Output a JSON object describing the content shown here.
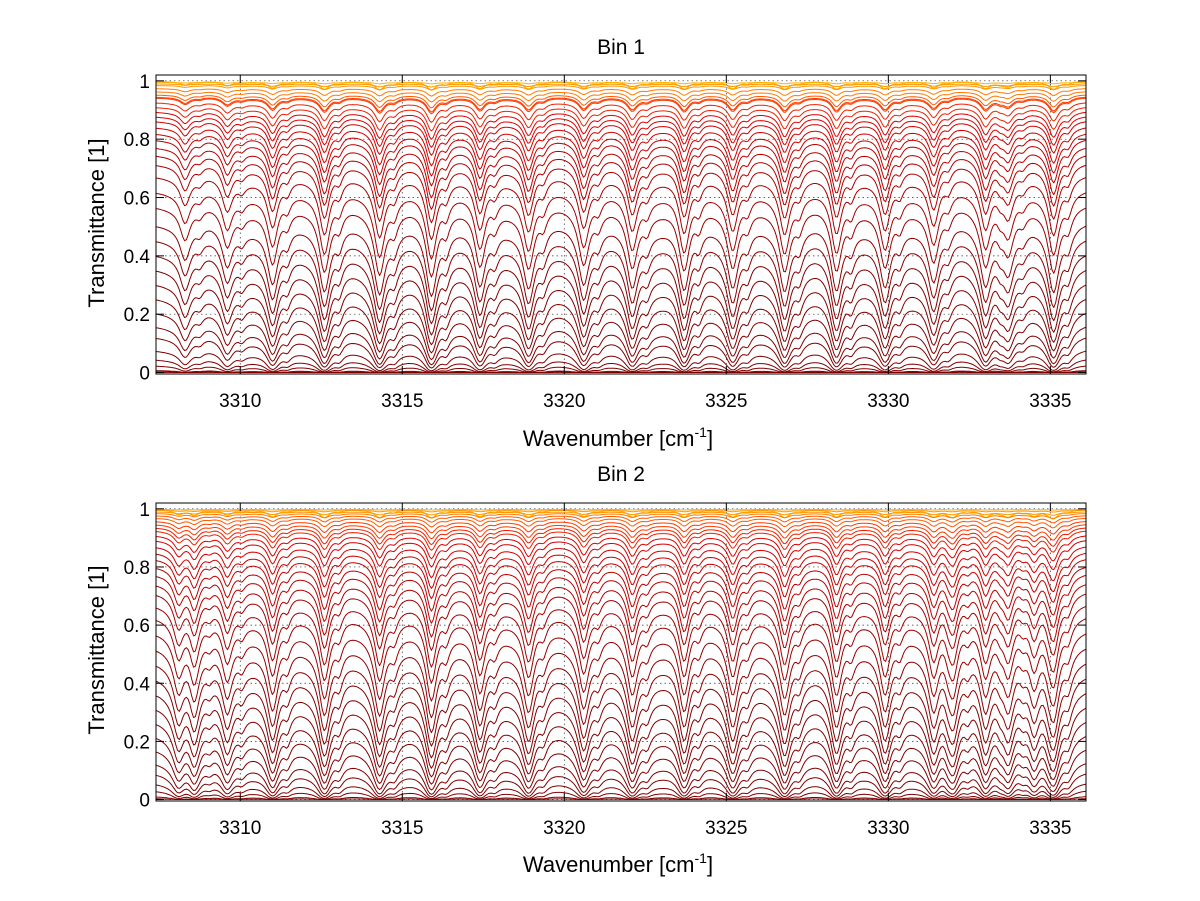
{
  "chart_data": [
    {
      "type": "line",
      "title": "Bin 1",
      "xlabel": "Wavenumber [cm",
      "xlabel_sup": "-1",
      "xlabel_tail": "]",
      "ylabel": "Transmittance [1]",
      "xlim": [
        3307.4,
        3336.1
      ],
      "ylim": [
        -0.005,
        1.02
      ],
      "xticks": [
        3310,
        3315,
        3320,
        3325,
        3330,
        3335
      ],
      "yticks": [
        0,
        0.2,
        0.4,
        0.6,
        0.8,
        1
      ],
      "ytick_labels": [
        "0",
        "0.2",
        "0.4",
        "0.6",
        "0.8",
        "1"
      ],
      "grid": true,
      "legend": "none",
      "lines": {
        "wavenumbers": [
          3308.3,
          3309.6,
          3311.0,
          3312.6,
          3314.3,
          3315.9,
          3317.4,
          3318.9,
          3320.6,
          3322.1,
          3323.7,
          3325.2,
          3326.8,
          3328.4,
          3329.9,
          3331.4,
          3333.0,
          3333.7,
          3335.1
        ],
        "strengths": [
          0.45,
          0.55,
          0.85,
          1.0,
          1.0,
          1.1,
          0.9,
          0.9,
          0.85,
          0.9,
          1.0,
          0.9,
          0.95,
          1.0,
          0.9,
          0.8,
          0.85,
          0.6,
          1.0
        ],
        "width_cm-1": 0.18
      },
      "series_levels": [
        1.0,
        1.0,
        1.0,
        0.995,
        0.99,
        0.985,
        0.975,
        0.965,
        0.955,
        0.948,
        0.945,
        0.93,
        0.915,
        0.9,
        0.885,
        0.87,
        0.85,
        0.83,
        0.81,
        0.785,
        0.76,
        0.73,
        0.69,
        0.64,
        0.59,
        0.53,
        0.48,
        0.43,
        0.38,
        0.33,
        0.28,
        0.23,
        0.18,
        0.14,
        0.09,
        0.055,
        0.03,
        0.01,
        0.004,
        0.001
      ],
      "colors": [
        "#ffcc00",
        "#ffb000",
        "#ff9500",
        "#ff7a00",
        "#ff5a00",
        "#ff3b00",
        "#f02000",
        "#e00000",
        "#d40000",
        "#c80000",
        "#bc0000",
        "#b00000",
        "#a40000",
        "#980000",
        "#8c0000",
        "#800000"
      ]
    },
    {
      "type": "line",
      "title": "Bin 2",
      "xlabel": "Wavenumber [cm",
      "xlabel_sup": "-1",
      "xlabel_tail": "]",
      "ylabel": "Transmittance [1]",
      "xlim": [
        3307.4,
        3336.1
      ],
      "ylim": [
        -0.005,
        1.02
      ],
      "xticks": [
        3310,
        3315,
        3320,
        3325,
        3330,
        3335
      ],
      "yticks": [
        0,
        0.2,
        0.4,
        0.6,
        0.8,
        1
      ],
      "ytick_labels": [
        "0",
        "0.2",
        "0.4",
        "0.6",
        "0.8",
        "1"
      ],
      "grid": true,
      "legend": "none",
      "lines": {
        "wavenumbers": [
          3308.1,
          3308.6,
          3309.6,
          3311.0,
          3312.6,
          3314.3,
          3315.9,
          3317.4,
          3318.9,
          3320.6,
          3322.1,
          3323.7,
          3325.2,
          3326.8,
          3328.4,
          3329.9,
          3331.4,
          3332.0,
          3333.0,
          3333.7,
          3334.5,
          3335.1
        ],
        "strengths": [
          0.6,
          0.6,
          0.7,
          0.95,
          1.05,
          1.0,
          1.1,
          0.95,
          0.95,
          0.9,
          0.95,
          1.0,
          0.95,
          1.0,
          1.0,
          0.95,
          0.9,
          0.9,
          0.9,
          0.85,
          0.75,
          1.05
        ],
        "width_cm-1": 0.18
      },
      "series_levels": [
        1.0,
        1.0,
        1.0,
        0.998,
        0.995,
        0.99,
        0.985,
        0.978,
        0.97,
        0.96,
        0.95,
        0.94,
        0.93,
        0.915,
        0.9,
        0.88,
        0.86,
        0.84,
        0.815,
        0.79,
        0.76,
        0.73,
        0.69,
        0.65,
        0.6,
        0.55,
        0.5,
        0.45,
        0.4,
        0.35,
        0.3,
        0.25,
        0.2,
        0.15,
        0.11,
        0.07,
        0.04,
        0.015,
        0.005
      ],
      "colors": [
        "#ffcc00",
        "#ffb000",
        "#ff9500",
        "#ff7a00",
        "#ff5a00",
        "#ff3b00",
        "#f02000",
        "#e00000",
        "#d40000",
        "#c80000",
        "#bc0000",
        "#b00000",
        "#a40000",
        "#980000",
        "#8c0000",
        "#800000"
      ]
    }
  ]
}
